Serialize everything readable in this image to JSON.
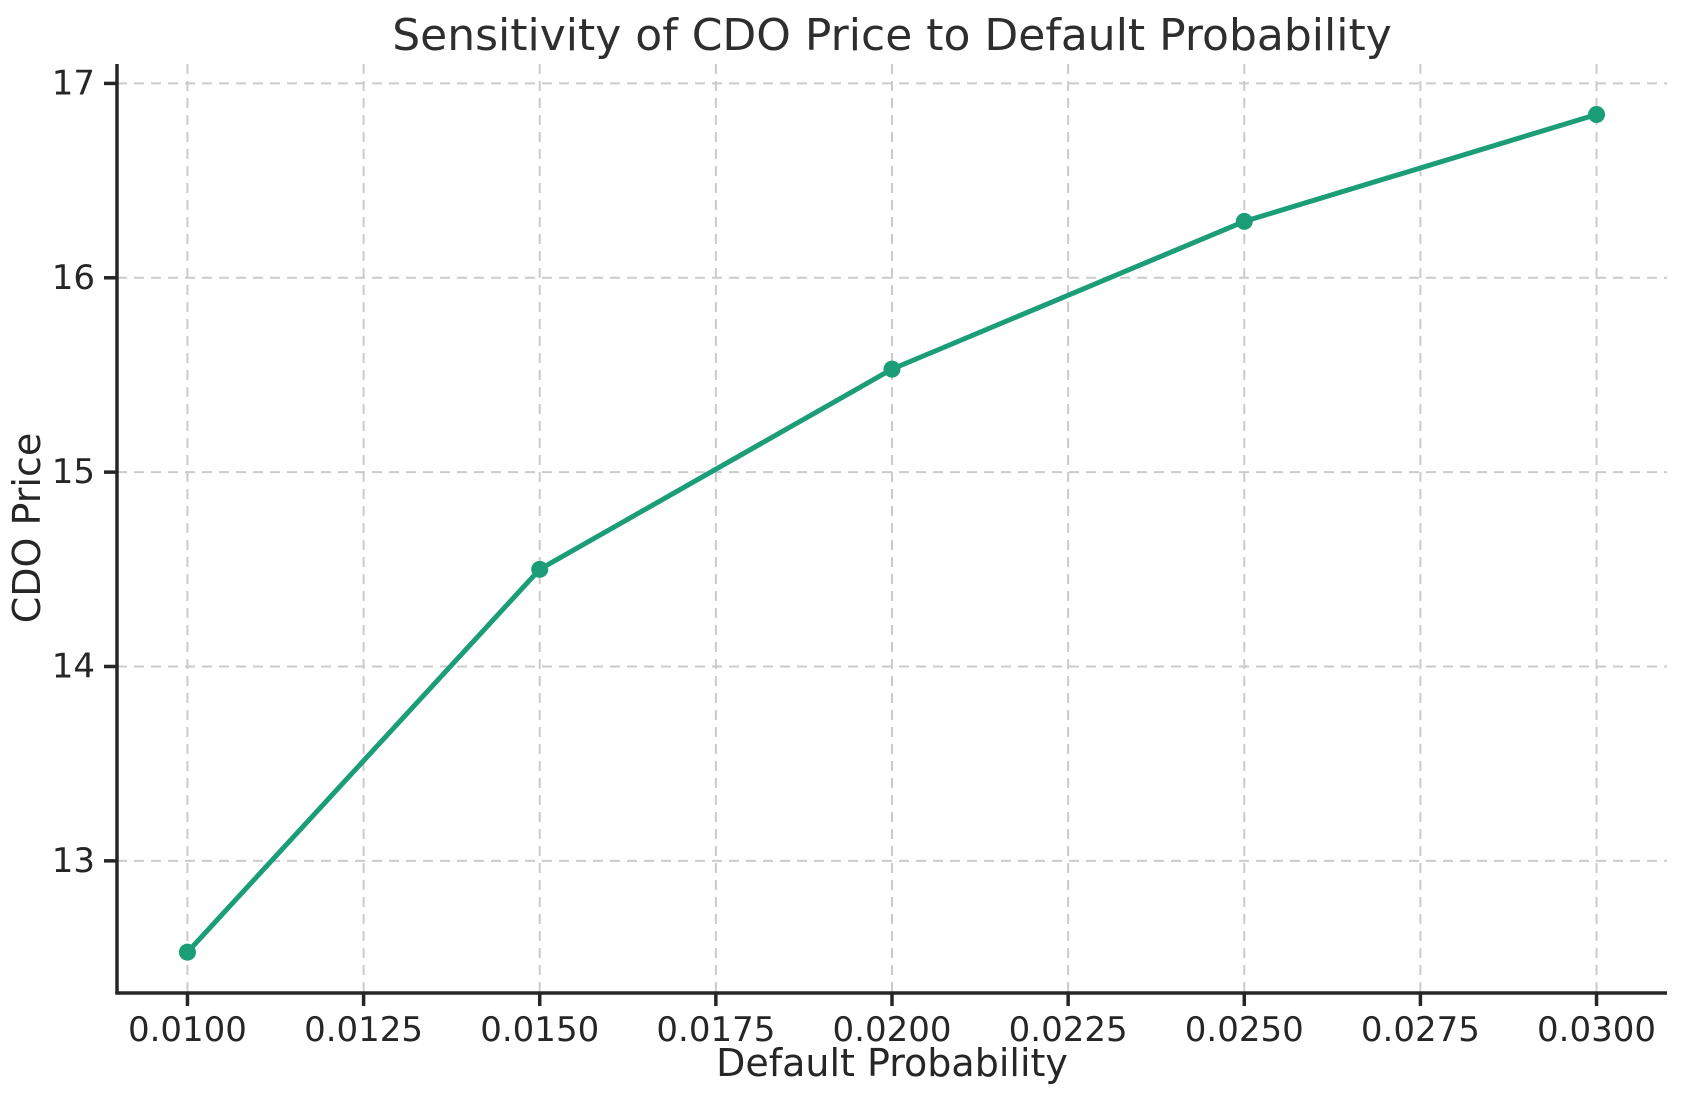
{
  "figure": {
    "background": "#ffffff"
  },
  "chart_data": {
    "type": "line",
    "title": "Sensitivity of CDO Price to Default Probability",
    "xlabel": "Default Probability",
    "ylabel": "CDO Price",
    "series": [
      {
        "name": "CDO Price",
        "x": [
          0.01,
          0.015,
          0.02,
          0.025,
          0.03
        ],
        "y": [
          12.53,
          14.5,
          15.53,
          16.29,
          16.84
        ]
      }
    ],
    "xticks": {
      "values": [
        0.01,
        0.0125,
        0.015,
        0.0175,
        0.02,
        0.0225,
        0.025,
        0.0275,
        0.03
      ],
      "labels": [
        "0.0100",
        "0.0125",
        "0.0150",
        "0.0175",
        "0.0200",
        "0.0225",
        "0.0250",
        "0.0275",
        "0.0300"
      ]
    },
    "yticks": {
      "values": [
        13,
        14,
        15,
        16,
        17
      ],
      "labels": [
        "13",
        "14",
        "15",
        "16",
        "17"
      ]
    },
    "xlim": [
      0.009,
      0.031
    ],
    "ylim": [
      12.32,
      17.1
    ],
    "grid": true,
    "grid_style": "dashed",
    "legend": "none",
    "marker": "o",
    "colors": {
      "line": "#1b9e77",
      "marker": "#1b9e77",
      "grid": "#cbcbcb",
      "spine": "#262626",
      "tick": "#262626",
      "text": "#262626",
      "title": "#2e2e2e",
      "background": "#ffffff"
    }
  }
}
